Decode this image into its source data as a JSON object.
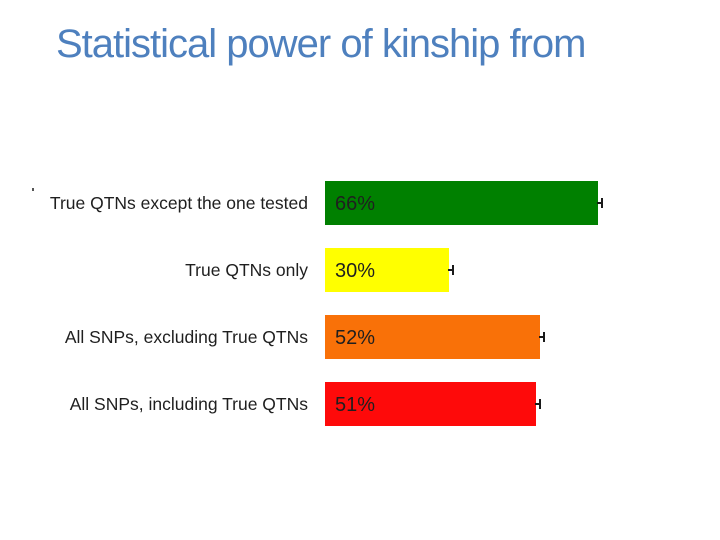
{
  "title": {
    "text": "Statistical power of kinship from",
    "color": "#4E80BE"
  },
  "chart_data": {
    "type": "bar",
    "orientation": "horizontal",
    "title": "Statistical power of kinship from",
    "categories": [
      "True QTNs except the one tested",
      "True QTNs only",
      "All SNPs, excluding True QTNs",
      "All SNPs, including True QTNs"
    ],
    "values": [
      66,
      30,
      52,
      51
    ],
    "value_labels": [
      "66%",
      "30%",
      "52%",
      "51%"
    ],
    "bar_colors": [
      "#008000",
      "#FFFF00",
      "#F97108",
      "#FE0A0A"
    ],
    "xlabel": "",
    "ylabel": "",
    "xlim": [
      0,
      100
    ],
    "grid": false,
    "legend": false,
    "error_bars": true,
    "category_label_color": "#1F1F1F",
    "value_label_color": "#1F1F1F",
    "error_bar_color": "#1A1A1A",
    "background": "#FFFFFF"
  }
}
